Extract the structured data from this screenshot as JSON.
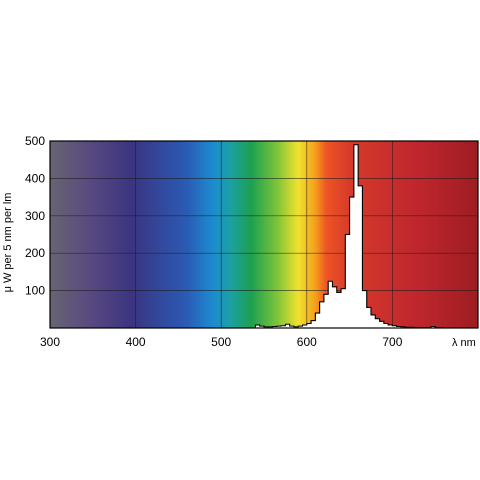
{
  "chart_data": {
    "type": "area",
    "title": "",
    "xlabel": "λ nm",
    "ylabel": "μ W per 5 nm per lm",
    "xlim": [
      300,
      800
    ],
    "ylim": [
      0,
      500
    ],
    "x_ticks": [
      300,
      400,
      500,
      600,
      700
    ],
    "y_ticks": [
      100,
      200,
      300,
      400,
      500
    ],
    "grid": true,
    "background": "visible-spectrum gradient",
    "series": [
      {
        "x": [
          380,
          535,
          540,
          545,
          550,
          555,
          560,
          565,
          570,
          575,
          580,
          585,
          590,
          595,
          600,
          605,
          610,
          615,
          620,
          625,
          630,
          635,
          640,
          645,
          650,
          655,
          660,
          665,
          670,
          675,
          680,
          685,
          690,
          695,
          700,
          705,
          710,
          715,
          720,
          725,
          730,
          735,
          740,
          745,
          750,
          755,
          760,
          765,
          770,
          775,
          780
        ],
        "y": [
          0,
          0,
          8,
          5,
          3,
          3,
          4,
          5,
          6,
          10,
          5,
          3,
          5,
          8,
          12,
          20,
          40,
          70,
          90,
          125,
          110,
          95,
          105,
          250,
          350,
          490,
          380,
          100,
          55,
          35,
          25,
          18,
          12,
          8,
          6,
          4,
          3,
          2,
          2,
          1,
          1,
          1,
          1,
          4,
          1,
          1,
          0,
          0,
          0,
          0,
          0
        ]
      }
    ],
    "colors": {
      "line": "#000000",
      "fill": "#ffffff",
      "spectrum": [
        "#676472",
        "#5a4a80",
        "#3b3480",
        "#2a5bb5",
        "#1c8bd0",
        "#1ba0a6",
        "#1ca050",
        "#7cc33a",
        "#f2e12e",
        "#f4a01c",
        "#ee5525",
        "#d63a2a",
        "#c0272d",
        "#9e1d22"
      ]
    }
  }
}
